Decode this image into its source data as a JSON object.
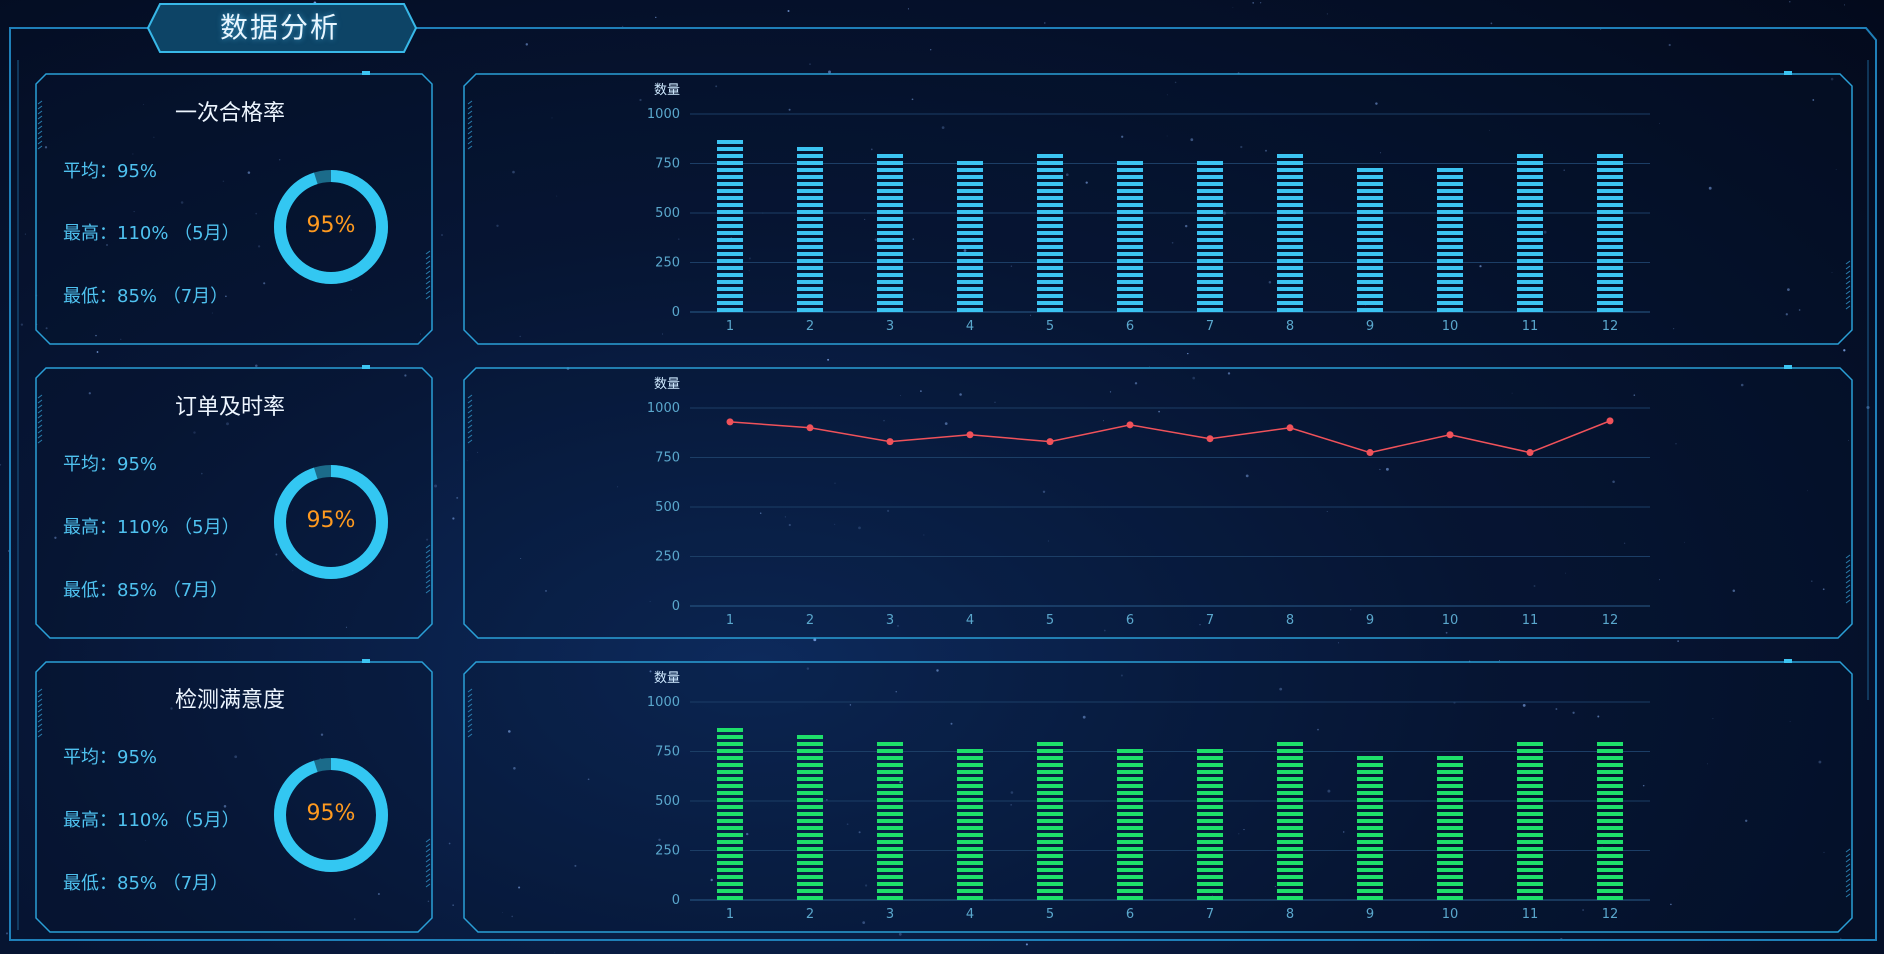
{
  "header": {
    "title": "数据分析"
  },
  "panels": [
    {
      "title": "一次合格率",
      "avg_label": "平均：95%",
      "max_label": "最高：110% （5月）",
      "min_label": "最低：85% （7月）",
      "gauge_text": "95%",
      "gauge_value": 0.95
    },
    {
      "title": "订单及时率",
      "avg_label": "平均：95%",
      "max_label": "最高：110% （5月）",
      "min_label": "最低：85% （7月）",
      "gauge_text": "95%",
      "gauge_value": 0.95
    },
    {
      "title": "检测满意度",
      "avg_label": "平均：95%",
      "max_label": "最高：110% （5月）",
      "min_label": "最低：85% （7月）",
      "gauge_text": "95%",
      "gauge_value": 0.95
    }
  ],
  "colors": {
    "accent": "#33c7f2",
    "gauge_track": "#1b6b8a",
    "gauge_text": "#ff9a1f",
    "bar_blue": "#3cc4f2",
    "line_red": "#f0525a",
    "bar_green": "#1ee06a",
    "axis_text": "#5aa7cc"
  },
  "chart_data": [
    {
      "type": "bar",
      "ylabel": "数量",
      "categories": [
        "1",
        "2",
        "3",
        "4",
        "5",
        "6",
        "7",
        "8",
        "9",
        "10",
        "11",
        "12"
      ],
      "values": [
        900,
        865,
        825,
        790,
        825,
        790,
        790,
        825,
        755,
        755,
        825,
        825
      ],
      "ylim": [
        0,
        1000
      ],
      "yticks": [
        0,
        250,
        500,
        750,
        1000
      ],
      "grid": true
    },
    {
      "type": "line",
      "ylabel": "数量",
      "categories": [
        "1",
        "2",
        "3",
        "4",
        "5",
        "6",
        "7",
        "8",
        "9",
        "10",
        "11",
        "12"
      ],
      "values": [
        930,
        900,
        830,
        865,
        830,
        915,
        845,
        900,
        775,
        865,
        775,
        935
      ],
      "ylim": [
        0,
        1000
      ],
      "yticks": [
        0,
        250,
        500,
        750,
        1000
      ],
      "grid": true
    },
    {
      "type": "bar",
      "ylabel": "数量",
      "categories": [
        "1",
        "2",
        "3",
        "4",
        "5",
        "6",
        "7",
        "8",
        "9",
        "10",
        "11",
        "12"
      ],
      "values": [
        900,
        865,
        825,
        790,
        825,
        790,
        790,
        825,
        755,
        755,
        825,
        825
      ],
      "ylim": [
        0,
        1000
      ],
      "yticks": [
        0,
        250,
        500,
        750,
        1000
      ],
      "grid": true
    }
  ]
}
